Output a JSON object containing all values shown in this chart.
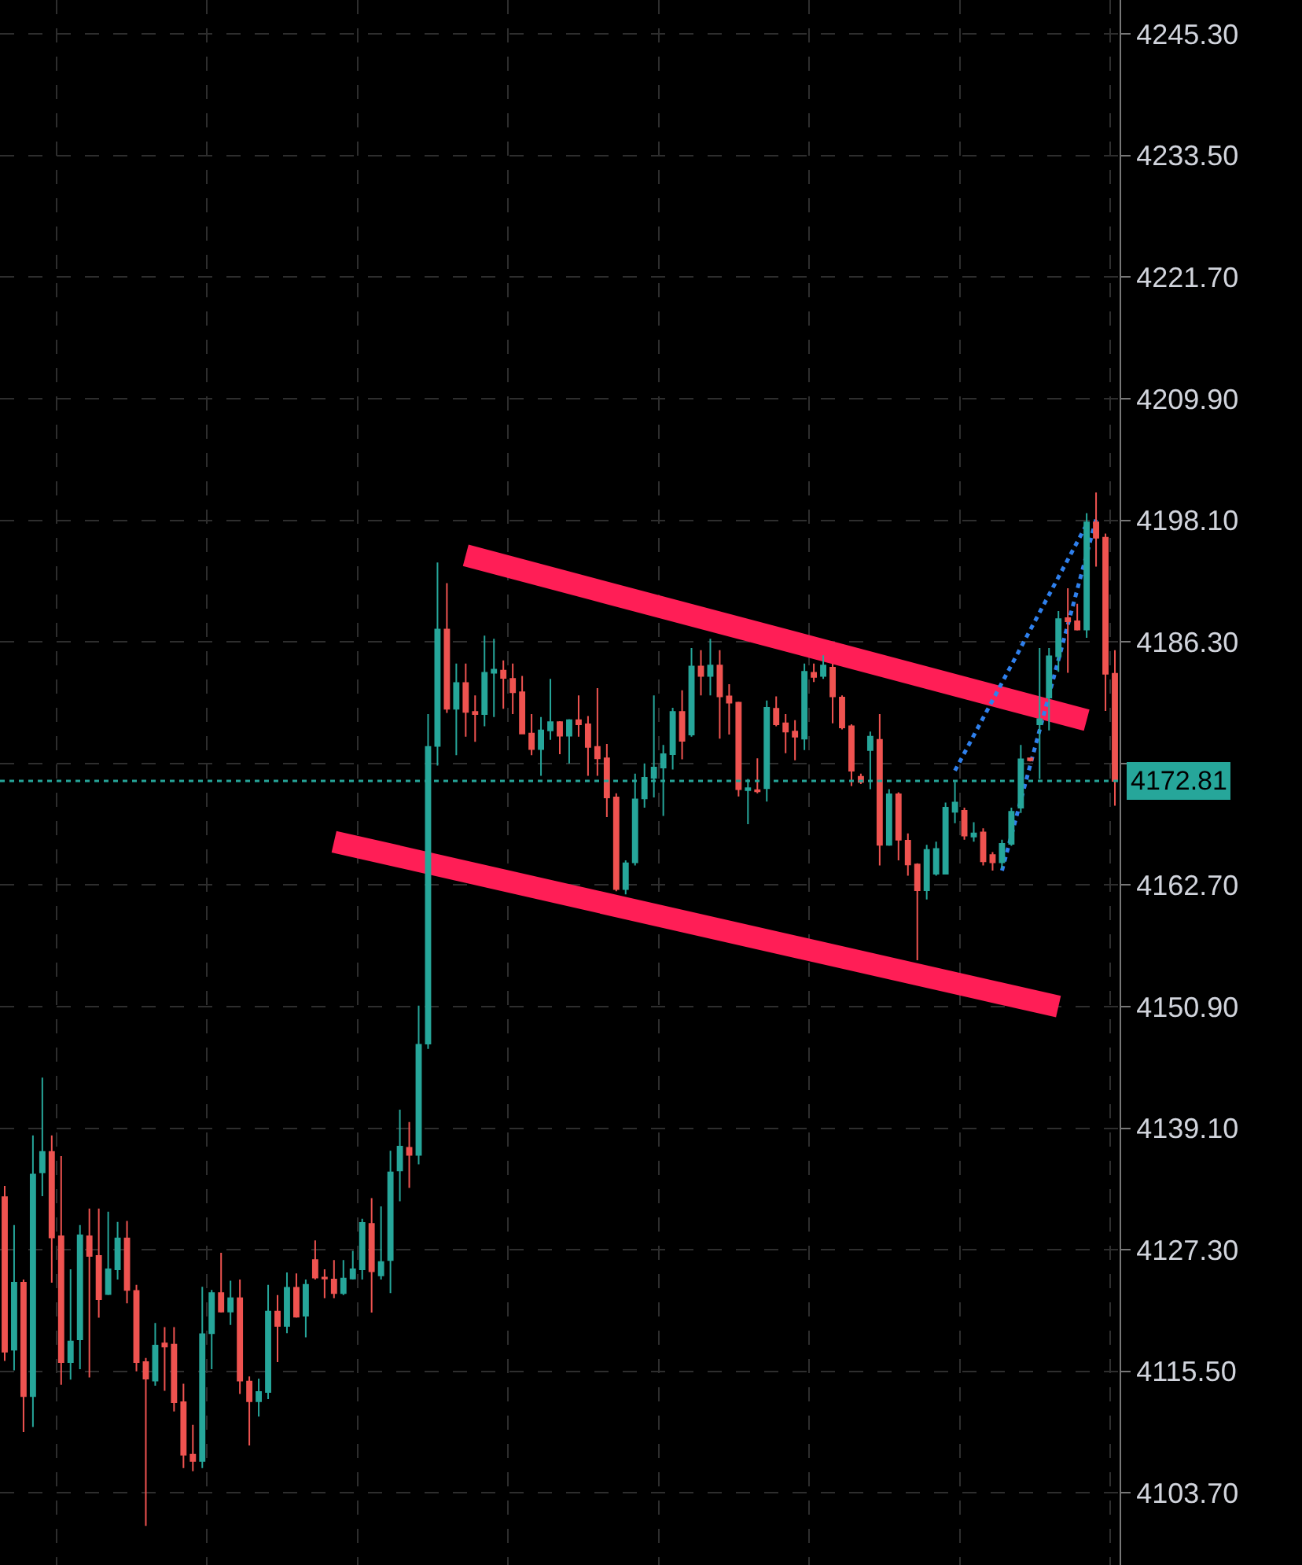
{
  "chart_data": {
    "type": "candlestick",
    "categories": [
      null,
      null,
      null,
      null,
      null,
      null,
      null,
      null,
      null,
      null,
      null,
      null,
      null,
      null,
      null,
      null,
      null,
      null,
      null,
      null,
      null,
      null,
      null,
      null,
      null,
      null,
      null,
      null,
      null,
      null,
      null,
      null,
      null,
      null,
      null,
      null,
      null,
      null,
      null,
      null,
      null,
      null,
      null,
      null,
      null,
      null,
      null,
      null,
      null,
      null,
      null,
      null,
      null,
      null,
      null,
      null,
      null,
      null,
      null,
      null,
      null,
      null,
      null,
      null,
      null,
      null,
      null,
      null,
      null,
      null,
      null,
      null,
      null,
      null,
      null,
      null,
      null,
      null,
      null,
      null,
      null,
      null,
      null,
      null,
      null,
      null,
      null,
      null,
      null,
      null,
      null,
      null,
      null,
      null,
      null,
      null,
      null,
      null,
      null,
      null,
      null,
      null,
      null,
      null,
      null,
      null,
      null,
      null,
      null,
      null,
      null,
      null,
      null,
      null,
      null,
      null,
      null,
      null,
      null
    ],
    "ohlc": [
      [
        4132.4,
        4133.5,
        4116.5,
        4117.4
      ],
      [
        4117.6,
        4129.7,
        4115.6,
        4124.1
      ],
      [
        4124.1,
        4124.4,
        4109.6,
        4113.1
      ],
      [
        4113.1,
        4138.4,
        4110.1,
        4134.6
      ],
      [
        4134.8,
        4144.0,
        4132.5,
        4136.8
      ],
      [
        4136.8,
        4138.4,
        4124.1,
        4128.5
      ],
      [
        4128.6,
        4136.4,
        4114.2,
        4116.4
      ],
      [
        4116.4,
        4125.4,
        4114.7,
        4118.4
      ],
      [
        4118.6,
        4129.7,
        4115.7,
        4128.7
      ],
      [
        4128.6,
        4131.3,
        4114.9,
        4126.7
      ],
      [
        4126.7,
        4131.3,
        4120.7,
        4122.5
      ],
      [
        4123.0,
        4131.0,
        4122.9,
        4125.4
      ],
      [
        4125.4,
        4130.0,
        4124.4,
        4128.4
      ],
      [
        4128.4,
        4130.1,
        4122.1,
        4123.4
      ],
      [
        4123.3,
        4123.9,
        4115.5,
        4116.4
      ],
      [
        4116.4,
        4116.8,
        4100.5,
        4114.8
      ],
      [
        4114.6,
        4120.2,
        4114.1,
        4118.0
      ],
      [
        4118.2,
        4119.8,
        4113.6,
        4117.9
      ],
      [
        4118.1,
        4119.8,
        4111.6,
        4112.5
      ],
      [
        4112.5,
        4114.3,
        4106.1,
        4107.4
      ],
      [
        4107.4,
        4110.3,
        4105.8,
        4106.8
      ],
      [
        4106.8,
        4123.7,
        4106.1,
        4119.1
      ],
      [
        4119.2,
        4123.4,
        4115.7,
        4123.1
      ],
      [
        4123.1,
        4127.0,
        4121.2,
        4121.3
      ],
      [
        4121.3,
        4124.3,
        4120.0,
        4122.6
      ],
      [
        4122.6,
        4124.4,
        4113.3,
        4114.6
      ],
      [
        4114.5,
        4115.0,
        4108.3,
        4112.6
      ],
      [
        4112.6,
        4114.8,
        4111.1,
        4113.5
      ],
      [
        4113.5,
        4123.9,
        4112.8,
        4121.3
      ],
      [
        4121.3,
        4122.9,
        4116.4,
        4119.9
      ],
      [
        4119.9,
        4125.1,
        4119.2,
        4123.6
      ],
      [
        4123.6,
        4125.0,
        4120.7,
        4120.8
      ],
      [
        4120.9,
        4124.4,
        4118.8,
        4123.9
      ],
      [
        4126.3,
        4128.2,
        4124.4,
        4124.6
      ],
      [
        4124.6,
        4125.4,
        4122.6,
        4124.5
      ],
      [
        4124.4,
        4126.3,
        4122.6,
        4123.1
      ],
      [
        4123.1,
        4126.3,
        4122.9,
        4124.5
      ],
      [
        4124.5,
        4127.2,
        4124.4,
        4125.4
      ],
      [
        4125.4,
        4130.3,
        4124.4,
        4129.9
      ],
      [
        4129.8,
        4132.3,
        4121.2,
        4125.2
      ],
      [
        4124.8,
        4131.5,
        4124.4,
        4126.1
      ],
      [
        4126.3,
        4136.9,
        4123.1,
        4134.8
      ],
      [
        4135.0,
        4140.9,
        4132.0,
        4137.3
      ],
      [
        4137.2,
        4139.7,
        4133.3,
        4136.5
      ],
      [
        4136.5,
        4151.0,
        4135.6,
        4147.2
      ],
      [
        4147.3,
        4179.3,
        4146.8,
        4176.1
      ],
      [
        4176.2,
        4194.0,
        4174.3,
        4187.5
      ],
      [
        4187.5,
        4192.0,
        4179.4,
        4179.8
      ],
      [
        4179.8,
        4184.2,
        4175.3,
        4182.3
      ],
      [
        4182.3,
        4184.2,
        4177.1,
        4179.5
      ],
      [
        4179.5,
        4181.1,
        4176.6,
        4179.3
      ],
      [
        4179.3,
        4186.9,
        4178.1,
        4183.3
      ],
      [
        4183.3,
        4186.6,
        4179.0,
        4183.6
      ],
      [
        4183.5,
        4184.5,
        4179.8,
        4182.8
      ],
      [
        4182.7,
        4184.2,
        4179.3,
        4181.4
      ],
      [
        4181.4,
        4183.0,
        4177.4,
        4177.4
      ],
      [
        4177.4,
        4179.3,
        4175.3,
        4175.9
      ],
      [
        4175.9,
        4179.0,
        4173.3,
        4177.7
      ],
      [
        4177.7,
        4182.7,
        4176.8,
        4178.5
      ],
      [
        4178.5,
        4178.6,
        4175.4,
        4177.2
      ],
      [
        4177.2,
        4178.8,
        4174.5,
        4178.7
      ],
      [
        4178.7,
        4181.1,
        4177.1,
        4178.3
      ],
      [
        4178.3,
        4179.1,
        4173.3,
        4176.1
      ],
      [
        4176.1,
        4181.8,
        4173.3,
        4175.0
      ],
      [
        4175.0,
        4176.4,
        4169.3,
        4171.2
      ],
      [
        4171.2,
        4171.6,
        4162.1,
        4162.3
      ],
      [
        4162.3,
        4165.1,
        4161.8,
        4164.8
      ],
      [
        4164.9,
        4173.5,
        4164.6,
        4171.0
      ],
      [
        4171.1,
        4174.5,
        4170.2,
        4173.1
      ],
      [
        4173.1,
        4181.1,
        4171.2,
        4174.1
      ],
      [
        4174.1,
        4176.3,
        4169.4,
        4175.4
      ],
      [
        4175.4,
        4179.9,
        4173.9,
        4179.5
      ],
      [
        4179.5,
        4181.6,
        4174.9,
        4176.7
      ],
      [
        4177.3,
        4185.7,
        4177.1,
        4183.9
      ],
      [
        4183.9,
        4185.5,
        4181.1,
        4183.0
      ],
      [
        4183.0,
        4186.6,
        4181.1,
        4184.0
      ],
      [
        4184.0,
        4185.5,
        4176.9,
        4181.0
      ],
      [
        4181.0,
        4182.2,
        4177.3,
        4180.4
      ],
      [
        4180.4,
        4180.5,
        4171.3,
        4172.0
      ],
      [
        4171.9,
        4173.0,
        4168.6,
        4172.1
      ],
      [
        4171.9,
        4175.0,
        4171.6,
        4171.8
      ],
      [
        4172.1,
        4180.6,
        4170.8,
        4179.9
      ],
      [
        4179.8,
        4181.0,
        4178.1,
        4178.3
      ],
      [
        4178.4,
        4179.3,
        4175.5,
        4177.6
      ],
      [
        4177.6,
        4178.7,
        4174.8,
        4177.1
      ],
      [
        4176.9,
        4184.2,
        4175.8,
        4183.4
      ],
      [
        4183.3,
        4184.2,
        4182.4,
        4182.9
      ],
      [
        4183.0,
        4185.0,
        4182.7,
        4184.0
      ],
      [
        4183.8,
        4184.2,
        4178.4,
        4181.0
      ],
      [
        4180.9,
        4181.1,
        4177.8,
        4178.0
      ],
      [
        4178.1,
        4178.3,
        4172.3,
        4173.8
      ],
      [
        4173.2,
        4173.5,
        4172.5,
        4172.7
      ],
      [
        4175.8,
        4177.6,
        4172.0,
        4177.1
      ],
      [
        4176.8,
        4179.3,
        4164.6,
        4166.6
      ],
      [
        4166.6,
        4172.0,
        4166.5,
        4171.5
      ],
      [
        4171.5,
        4171.7,
        4165.1,
        4167.1
      ],
      [
        4167.0,
        4167.7,
        4163.6,
        4164.7
      ],
      [
        4164.7,
        4164.8,
        4155.4,
        4162.2
      ],
      [
        4162.2,
        4166.6,
        4161.3,
        4166.1
      ],
      [
        4163.8,
        4166.9,
        4163.6,
        4166.2
      ],
      [
        4163.8,
        4170.7,
        4163.8,
        4170.2
      ],
      [
        4169.8,
        4172.7,
        4168.7,
        4170.7
      ],
      [
        4169.9,
        4170.2,
        4167.1,
        4167.5
      ],
      [
        4167.4,
        4168.8,
        4166.9,
        4167.7
      ],
      [
        4167.8,
        4168.2,
        4164.6,
        4165.0
      ],
      [
        4165.6,
        4165.9,
        4164.1,
        4164.9
      ],
      [
        4164.9,
        4167.1,
        4164.3,
        4166.7
      ],
      [
        4166.7,
        4170.2,
        4166.5,
        4169.8
      ],
      [
        4170.2,
        4176.3,
        4169.7,
        4174.9
      ],
      [
        4175.0,
        4175.0,
        4174.7,
        4174.8
      ],
      [
        4178.3,
        4185.7,
        4173.0,
        4178.8
      ],
      [
        4180.9,
        4185.7,
        4177.7,
        4184.9
      ],
      [
        4184.9,
        4189.3,
        4183.4,
        4188.5
      ],
      [
        4188.6,
        4191.5,
        4183.3,
        4188.3
      ],
      [
        4188.3,
        4190.0,
        4187.4,
        4187.5
      ],
      [
        4187.5,
        4198.8,
        4186.7,
        4197.9
      ],
      [
        4197.9,
        4200.8,
        4193.6,
        4196.4
      ],
      [
        4196.4,
        4196.8,
        4179.6,
        4183.2
      ],
      [
        4183.2,
        4185.5,
        4170.4,
        4172.81
      ]
    ],
    "colors": [
      "#ef5350",
      "#26a69a",
      "#ef5350",
      "#26a69a",
      "#26a69a",
      "#ef5350",
      "#ef5350",
      "#26a69a",
      "#26a69a",
      "#ef5350",
      "#ef5350",
      "#26a69a",
      "#26a69a",
      "#ef5350",
      "#ef5350",
      "#ef5350",
      "#26a69a",
      "#ef5350",
      "#ef5350",
      "#ef5350",
      "#ef5350",
      "#26a69a",
      "#26a69a",
      "#ef5350",
      "#26a69a",
      "#ef5350",
      "#ef5350",
      "#26a69a",
      "#26a69a",
      "#ef5350",
      "#26a69a",
      "#ef5350",
      "#26a69a",
      "#ef5350",
      "#ef5350",
      "#ef5350",
      "#26a69a",
      "#26a69a",
      "#26a69a",
      "#ef5350",
      "#26a69a",
      "#26a69a",
      "#26a69a",
      "#ef5350",
      "#26a69a",
      "#26a69a",
      "#26a69a",
      "#ef5350",
      "#26a69a",
      "#ef5350",
      "#ef5350",
      "#26a69a",
      "#26a69a",
      "#ef5350",
      "#ef5350",
      "#ef5350",
      "#ef5350",
      "#26a69a",
      "#26a69a",
      "#ef5350",
      "#26a69a",
      "#ef5350",
      "#ef5350",
      "#ef5350",
      "#ef5350",
      "#ef5350",
      "#26a69a",
      "#26a69a",
      "#26a69a",
      "#26a69a",
      "#26a69a",
      "#26a69a",
      "#ef5350",
      "#26a69a",
      "#ef5350",
      "#26a69a",
      "#ef5350",
      "#ef5350",
      "#ef5350",
      "#26a69a",
      "#ef5350",
      "#26a69a",
      "#ef5350",
      "#ef5350",
      "#ef5350",
      "#26a69a",
      "#ef5350",
      "#26a69a",
      "#ef5350",
      "#ef5350",
      "#ef5350",
      "#ef5350",
      "#26a69a",
      "#ef5350",
      "#26a69a",
      "#ef5350",
      "#ef5350",
      "#ef5350",
      "#26a69a",
      "#26a69a",
      "#26a69a",
      "#26a69a",
      "#ef5350",
      "#26a69a",
      "#ef5350",
      "#ef5350",
      "#26a69a",
      "#26a69a",
      "#26a69a",
      "#ef5350",
      "#26a69a",
      "#26a69a",
      "#26a69a",
      "#ef5350",
      "#ef5350",
      "#26a69a",
      "#ef5350",
      "#ef5350",
      "#ef5350"
    ],
    "series": [
      {
        "type": "line",
        "color": "#ff1e56",
        "values": [
          null,
          null,
          null,
          null,
          null,
          null,
          null,
          null,
          null,
          null,
          null,
          null,
          null,
          null,
          null,
          null,
          null,
          null,
          null,
          null,
          null,
          null,
          null,
          null,
          null,
          null,
          null,
          null,
          null,
          null,
          null,
          null,
          null,
          null,
          null,
          null,
          null,
          null,
          null,
          null,
          null,
          null,
          null,
          null,
          null,
          null,
          null,
          null,
          null,
          4194.7,
          null,
          null,
          null,
          null,
          null,
          null,
          null,
          null,
          null,
          null,
          null,
          null,
          null,
          null,
          null,
          null,
          null,
          null,
          null,
          null,
          null,
          null,
          null,
          null,
          null,
          null,
          null,
          null,
          null,
          null,
          null,
          null,
          null,
          null,
          null,
          null,
          null,
          null,
          null,
          null,
          null,
          null,
          null,
          null,
          null,
          null,
          null,
          null,
          null,
          null,
          null,
          null,
          null,
          null,
          null,
          null,
          null,
          null,
          null,
          null,
          null,
          null,
          null,
          null,
          null,
          4178.7,
          null,
          null,
          null
        ]
      },
      {
        "type": "line",
        "color": "#ff1e56",
        "values": [
          null,
          null,
          null,
          null,
          null,
          null,
          null,
          null,
          null,
          null,
          null,
          null,
          null,
          null,
          null,
          null,
          null,
          null,
          null,
          null,
          null,
          null,
          null,
          null,
          null,
          null,
          null,
          null,
          null,
          null,
          null,
          null,
          null,
          null,
          null,
          4166.9,
          null,
          null,
          null,
          null,
          null,
          null,
          null,
          null,
          null,
          null,
          null,
          null,
          null,
          null,
          null,
          null,
          null,
          null,
          null,
          null,
          null,
          null,
          null,
          null,
          null,
          null,
          null,
          null,
          null,
          null,
          null,
          null,
          null,
          null,
          null,
          null,
          null,
          null,
          null,
          null,
          null,
          null,
          null,
          null,
          null,
          null,
          null,
          null,
          null,
          null,
          null,
          null,
          null,
          null,
          null,
          null,
          null,
          null,
          null,
          null,
          null,
          null,
          null,
          null,
          null,
          null,
          null,
          null,
          null,
          null,
          null,
          null,
          null,
          null,
          null,
          null,
          4150.9,
          null,
          null,
          null,
          null,
          null,
          null
        ]
      },
      {
        "type": "line",
        "color": "#2f80ed",
        "line_style": "dotted",
        "values": [
          null,
          null,
          null,
          null,
          null,
          null,
          null,
          null,
          null,
          null,
          null,
          null,
          null,
          null,
          null,
          null,
          null,
          null,
          null,
          null,
          null,
          null,
          null,
          null,
          null,
          null,
          null,
          null,
          null,
          null,
          null,
          null,
          null,
          null,
          null,
          null,
          null,
          null,
          null,
          null,
          null,
          null,
          null,
          null,
          null,
          null,
          null,
          null,
          null,
          null,
          null,
          null,
          null,
          null,
          null,
          null,
          null,
          null,
          null,
          null,
          null,
          null,
          null,
          null,
          null,
          null,
          null,
          null,
          null,
          null,
          null,
          null,
          null,
          null,
          null,
          null,
          null,
          null,
          null,
          null,
          null,
          null,
          null,
          null,
          null,
          null,
          null,
          null,
          null,
          null,
          null,
          null,
          null,
          null,
          null,
          null,
          null,
          null,
          null,
          null,
          null,
          4173.8,
          null,
          null,
          null,
          null,
          null,
          null,
          null,
          null,
          null,
          null,
          null,
          null,
          null,
          4197.7,
          null,
          null,
          null
        ]
      },
      {
        "type": "line",
        "color": "#2f80ed",
        "line_style": "dotted",
        "values": [
          null,
          null,
          null,
          null,
          null,
          null,
          null,
          null,
          null,
          null,
          null,
          null,
          null,
          null,
          null,
          null,
          null,
          null,
          null,
          null,
          null,
          null,
          null,
          null,
          null,
          null,
          null,
          null,
          null,
          null,
          null,
          null,
          null,
          null,
          null,
          null,
          null,
          null,
          null,
          null,
          null,
          null,
          null,
          null,
          null,
          null,
          null,
          null,
          null,
          null,
          null,
          null,
          null,
          null,
          null,
          null,
          null,
          null,
          null,
          null,
          null,
          null,
          null,
          null,
          null,
          null,
          null,
          null,
          null,
          null,
          null,
          null,
          null,
          null,
          null,
          null,
          null,
          null,
          null,
          null,
          null,
          null,
          null,
          null,
          null,
          null,
          null,
          null,
          null,
          null,
          null,
          null,
          null,
          null,
          null,
          null,
          null,
          null,
          null,
          null,
          null,
          null,
          null,
          null,
          null,
          null,
          4164.1,
          null,
          null,
          null,
          null,
          null,
          null,
          null,
          null,
          null,
          4198.2,
          null,
          null
        ]
      }
    ],
    "ylim": [
      4096.7,
      4248.6
    ],
    "yticks": [
      {
        "value": 4245.3,
        "label": "4245.30"
      },
      {
        "value": 4233.5,
        "label": "4233.50"
      },
      {
        "value": 4221.7,
        "label": "4221.70"
      },
      {
        "value": 4209.9,
        "label": "4209.90"
      },
      {
        "value": 4198.1,
        "label": "4198.10"
      },
      {
        "value": 4186.3,
        "label": "4186.30"
      },
      {
        "value": 4174.5,
        "label": null
      },
      {
        "value": 4162.7,
        "label": "4162.70"
      },
      {
        "value": 4150.9,
        "label": "4150.90"
      },
      {
        "value": 4139.1,
        "label": "4139.10"
      },
      {
        "value": 4127.3,
        "label": "4127.30"
      },
      {
        "value": 4115.5,
        "label": "4115.50"
      },
      {
        "value": 4103.7,
        "label": "4103.70"
      }
    ],
    "ref_lines": [
      {
        "axis": "y",
        "value": 4172.81,
        "label": "4172.81",
        "color": "#26a69a",
        "line_style": "dotted"
      }
    ],
    "grid": true,
    "tick_labels": "y"
  }
}
